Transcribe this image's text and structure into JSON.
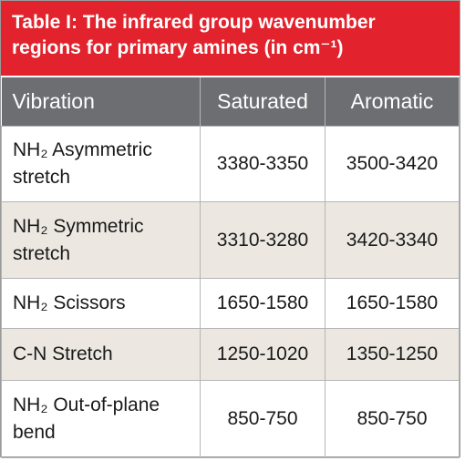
{
  "title": "Table I: The infrared group wavenumber regions for primary amines (in cm⁻¹)",
  "table": {
    "header": [
      "Vibration",
      "Saturated",
      "Aromatic"
    ],
    "rows": [
      [
        "NH₂ Asymmetric stretch",
        "3380-3350",
        "3500-3420"
      ],
      [
        "NH₂ Symmetric stretch",
        "3310-3280",
        "3420-3340"
      ],
      [
        "NH₂ Scissors",
        "1650-1580",
        "1650-1580"
      ],
      [
        "C-N Stretch",
        "1250-1020",
        "1350-1250"
      ],
      [
        "NH₂ Out-of-plane bend",
        "850-750",
        "850-750"
      ]
    ]
  }
}
